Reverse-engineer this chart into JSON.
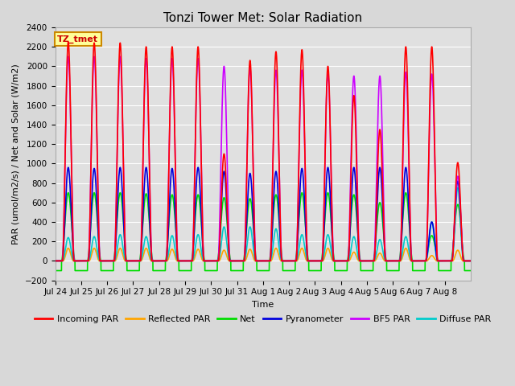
{
  "title": "Tonzi Tower Met: Solar Radiation",
  "ylabel": "PAR (umol/m2/s) / Net and Solar (W/m2)",
  "xlabel": "Time",
  "annotation": "TZ_tmet",
  "ylim": [
    -200,
    2400
  ],
  "bg_color": "#d8d8d8",
  "plot_bg": "#e0e0e0",
  "grid_color": "#ffffff",
  "series": {
    "incoming_par": {
      "color": "#ff0000",
      "label": "Incoming PAR",
      "lw": 1.2
    },
    "reflected_par": {
      "color": "#ffa500",
      "label": "Reflected PAR",
      "lw": 1.2
    },
    "net": {
      "color": "#00dd00",
      "label": "Net",
      "lw": 1.2
    },
    "pyranometer": {
      "color": "#0000dd",
      "label": "Pyranometer",
      "lw": 1.2
    },
    "bf5_par": {
      "color": "#cc00ff",
      "label": "BF5 PAR",
      "lw": 1.2
    },
    "diffuse_par": {
      "color": "#00cccc",
      "label": "Diffuse PAR",
      "lw": 1.2
    }
  },
  "xtick_labels": [
    "Jul 24",
    "Jul 25",
    "Jul 26",
    "Jul 27",
    "Jul 28",
    "Jul 29",
    "Jul 30",
    "Jul 31",
    "Aug 1",
    "Aug 2",
    "Aug 3",
    "Aug 4",
    "Aug 5",
    "Aug 6",
    "Aug 7",
    "Aug 8"
  ],
  "n_days": 16,
  "day_peaks": {
    "incoming": [
      2250,
      2240,
      2240,
      2200,
      2200,
      2200,
      1100,
      2060,
      2150,
      2170,
      2000,
      1700,
      1350,
      2200,
      2200,
      1010
    ],
    "bf5": [
      2100,
      2100,
      2100,
      2080,
      2080,
      2080,
      2000,
      1980,
      1960,
      1960,
      1920,
      1900,
      1900,
      1940,
      1920,
      870
    ],
    "pyrano": [
      960,
      950,
      960,
      960,
      950,
      960,
      920,
      900,
      920,
      950,
      960,
      960,
      960,
      960,
      400,
      820
    ],
    "net": [
      700,
      700,
      700,
      690,
      680,
      680,
      650,
      640,
      680,
      700,
      700,
      680,
      600,
      700,
      260,
      580
    ],
    "reflected": [
      130,
      130,
      130,
      130,
      120,
      120,
      110,
      120,
      130,
      130,
      130,
      90,
      80,
      130,
      55,
      110
    ],
    "diffuse": [
      240,
      250,
      270,
      250,
      260,
      270,
      350,
      350,
      330,
      270,
      270,
      250,
      220,
      250,
      400,
      750
    ]
  },
  "title_fontsize": 11,
  "legend_fontsize": 8,
  "tick_fontsize": 7.5,
  "ylabel_fontsize": 8,
  "xlabel_fontsize": 8
}
